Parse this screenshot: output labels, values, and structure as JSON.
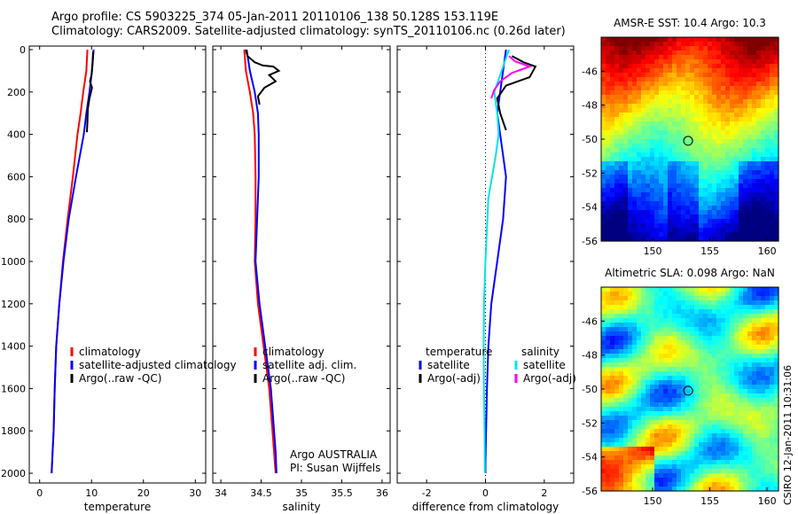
{
  "header": {
    "line1": "Argo profile: CS 5903225_374 05-Jan-2011 20110106_138 50.128S 153.119E",
    "line2": "Climatology: CARS2009. Satellite-adjusted climatology: synTS_20110106.nc (0.26d later)"
  },
  "side_stamp": "CSIRO 12-Jan-2011 10:31:06",
  "colors": {
    "climatology": "#ff0000",
    "satellite": "#0000ff",
    "argo": "#000000",
    "salinity_satellite": "#00e5e5",
    "salinity_argo": "#ff00ff"
  },
  "chart_data": [
    {
      "type": "line",
      "xlabel": "temperature",
      "xlim": [
        -2,
        32
      ],
      "xticks": [
        "0",
        "10",
        "20",
        "30"
      ],
      "ylim": [
        0,
        2060
      ],
      "yticks": [
        "0",
        "200",
        "400",
        "600",
        "800",
        "1000",
        "1200",
        "1400",
        "1600",
        "1800",
        "2000"
      ],
      "legend": {
        "placement": "lower-center",
        "entries": [
          "climatology",
          "satellite-adjusted climatology",
          "Argo(..raw -QC)"
        ]
      },
      "series": [
        {
          "name": "climatology",
          "color": "#ff0000",
          "x": [
            9.2,
            9.0,
            8.4,
            7.9,
            7.3,
            6.4,
            5.4,
            4.5,
            3.8,
            3.2,
            2.9,
            2.7,
            2.5,
            2.4,
            2.3
          ],
          "depth": [
            0,
            100,
            200,
            300,
            400,
            600,
            800,
            1000,
            1200,
            1400,
            1600,
            1800,
            1900,
            1950,
            2000
          ]
        },
        {
          "name": "satellite-adjusted climatology",
          "color": "#0000ff",
          "x": [
            10.4,
            10.1,
            9.6,
            9.0,
            8.5,
            7.0,
            5.6,
            4.6,
            3.8,
            3.2,
            2.9,
            2.7,
            2.5,
            2.4,
            2.3
          ],
          "depth": [
            0,
            100,
            200,
            300,
            400,
            600,
            800,
            1000,
            1200,
            1400,
            1600,
            1800,
            1900,
            1950,
            2000
          ]
        },
        {
          "name": "Argo(..raw -QC)",
          "color": "#000000",
          "x": [
            10.3,
            10.2,
            10.0,
            9.7,
            10.1,
            9.6,
            9.3,
            9.2,
            9.1
          ],
          "depth": [
            10,
            60,
            120,
            150,
            180,
            230,
            280,
            340,
            390
          ]
        }
      ]
    },
    {
      "type": "line",
      "xlabel": "salinity",
      "xlim": [
        33.9,
        36.1
      ],
      "xticks": [
        "34",
        "34.5",
        "35",
        "35.5",
        "36"
      ],
      "ylim": [
        0,
        2060
      ],
      "legend": {
        "placement": "lower-center",
        "entries": [
          "climatology",
          "satellite adj. clim.",
          "Argo(..raw -QC)"
        ]
      },
      "annotation": [
        "Argo AUSTRALIA",
        "PI: Susan Wijffels"
      ],
      "series": [
        {
          "name": "climatology",
          "color": "#ff0000",
          "x": [
            34.29,
            34.31,
            34.36,
            34.4,
            34.42,
            34.43,
            34.43,
            34.42,
            34.46,
            34.53,
            34.6,
            34.64,
            34.66,
            34.68
          ],
          "depth": [
            0,
            100,
            200,
            300,
            400,
            600,
            800,
            1000,
            1200,
            1400,
            1600,
            1800,
            1900,
            2000
          ]
        },
        {
          "name": "satellite adj. clim.",
          "color": "#0000ff",
          "x": [
            34.32,
            34.36,
            34.42,
            34.46,
            34.47,
            34.47,
            34.45,
            34.43,
            34.48,
            34.55,
            34.62,
            34.66,
            34.68,
            34.69
          ],
          "depth": [
            0,
            100,
            200,
            300,
            400,
            600,
            800,
            1000,
            1200,
            1400,
            1600,
            1800,
            1900,
            2000
          ]
        },
        {
          "name": "Argo(..raw -QC)",
          "color": "#000000",
          "x": [
            34.31,
            34.33,
            34.42,
            34.52,
            34.65,
            34.72,
            34.6,
            34.68,
            34.54,
            34.46,
            34.48
          ],
          "depth": [
            0,
            30,
            60,
            75,
            80,
            100,
            120,
            150,
            180,
            220,
            260
          ]
        }
      ]
    },
    {
      "type": "line",
      "xlabel": "difference from climatology",
      "xlim": [
        -3,
        3
      ],
      "xticks": [
        "-2",
        "0",
        "2"
      ],
      "ylim": [
        0,
        2060
      ],
      "legend": {
        "placement": "lower-center",
        "groups": [
          {
            "title": "temperature",
            "entries": [
              "satellite",
              "Argo(-adj)"
            ]
          },
          {
            "title": "salinity",
            "entries": [
              "satellite",
              "Argo(-adj)"
            ]
          }
        ]
      },
      "series": [
        {
          "name": "temperature satellite",
          "color": "#0000ff",
          "x": [
            0.7,
            0.6,
            0.5,
            0.4,
            0.5,
            0.6,
            0.7,
            0.6,
            0.4,
            0.2,
            0.1,
            0.05,
            0.02,
            0.0,
            0.0
          ],
          "depth": [
            0,
            100,
            200,
            300,
            400,
            500,
            600,
            800,
            1000,
            1200,
            1400,
            1600,
            1800,
            1950,
            2000
          ]
        },
        {
          "name": "temperature Argo(-adj)",
          "color": "#000000",
          "x": [
            0.9,
            1.3,
            1.7,
            1.5,
            0.7,
            0.4,
            0.5,
            0.7
          ],
          "depth": [
            30,
            60,
            80,
            130,
            170,
            230,
            300,
            380
          ]
        },
        {
          "name": "salinity satellite",
          "color": "#00e5e5",
          "x": [
            0.8,
            0.7,
            0.6,
            0.3,
            0.4,
            0.45,
            0.35,
            0.1,
            0.0,
            -0.05,
            -0.06,
            -0.05,
            -0.03,
            -0.02
          ],
          "depth": [
            0,
            40,
            80,
            200,
            300,
            400,
            500,
            700,
            1000,
            1200,
            1400,
            1600,
            1800,
            2000
          ]
        },
        {
          "name": "salinity Argo(-adj)",
          "color": "#ff00ff",
          "x": [
            0.8,
            1.0,
            1.5,
            0.9,
            0.5,
            0.3,
            0.2
          ],
          "depth": [
            30,
            55,
            80,
            110,
            150,
            190,
            230
          ]
        }
      ]
    },
    {
      "type": "heatmap",
      "title": "AMSR-E SST: 10.4  Argo: 10.3",
      "xlim": [
        145.5,
        161
      ],
      "ylim": [
        -56,
        -44
      ],
      "xticks": [
        "150",
        "155",
        "160"
      ],
      "yticks": [
        "-46",
        "-48",
        "-50",
        "-52",
        "-54",
        "-56"
      ],
      "marker": {
        "lon": 153.1,
        "lat": -50.1
      }
    },
    {
      "type": "heatmap",
      "title": "Altimetric SLA: 0.098  Argo: NaN",
      "xlim": [
        145.5,
        161
      ],
      "ylim": [
        -56,
        -44
      ],
      "xticks": [
        "150",
        "155",
        "160"
      ],
      "yticks": [
        "-46",
        "-48",
        "-50",
        "-52",
        "-54",
        "-56"
      ],
      "marker": {
        "lon": 153.1,
        "lat": -50.1
      }
    }
  ]
}
